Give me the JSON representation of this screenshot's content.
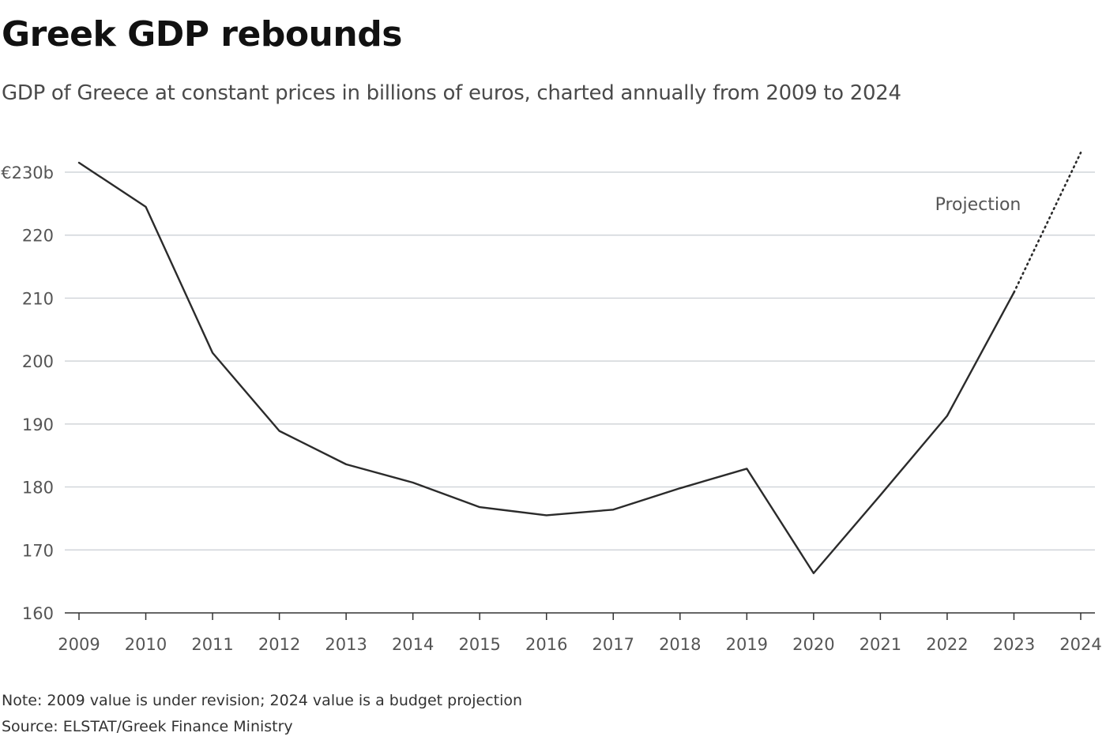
{
  "title": "Greek GDP rebounds",
  "subtitle": "GDP of Greece at constant prices in billions of euros, charted annually from 2009 to 2024",
  "note": "Note: 2009 value is under revision; 2024 value is a budget projection",
  "source": "Source: ELSTAT/Greek Finance Ministry",
  "chart_data": {
    "type": "line",
    "title": "Greek GDP rebounds",
    "x": [
      2009,
      2010,
      2011,
      2012,
      2013,
      2014,
      2015,
      2016,
      2017,
      2018,
      2019,
      2020,
      2021,
      2022,
      2023,
      2024
    ],
    "x_tick_labels": [
      "2009",
      "2010",
      "2011",
      "2012",
      "2013",
      "2014",
      "2015",
      "2016",
      "2017",
      "2018",
      "2019",
      "2020",
      "2021",
      "2022",
      "2023",
      "2024"
    ],
    "series": [
      {
        "values": [
          231.5,
          224.5,
          201.3,
          188.9,
          183.6,
          180.7,
          176.8,
          175.5,
          176.4,
          179.8,
          182.9,
          166.3,
          178.7,
          191.3,
          210.9,
          233.1
        ]
      }
    ],
    "projection": {
      "from_x": 2023,
      "to_x": 2024,
      "label": "Projection",
      "style": "dotted"
    },
    "y_ticks": [
      160,
      170,
      180,
      190,
      200,
      210,
      220,
      230
    ],
    "y_tick_labels": [
      "160",
      "170",
      "180",
      "190",
      "200",
      "210",
      "220",
      "€230b"
    ],
    "ylim": [
      160,
      233
    ],
    "xlabel": "",
    "ylabel": "",
    "grid": "horizontal",
    "legend": "none",
    "colors": {
      "line": "#2b2b2b",
      "grid": "#c8cdd2",
      "axis": "#333333",
      "text": "#555555"
    }
  }
}
